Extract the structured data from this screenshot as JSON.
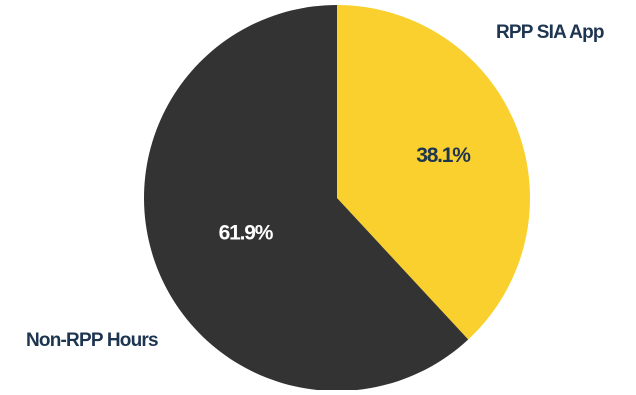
{
  "chart_data": {
    "type": "pie",
    "title": "",
    "slices": [
      {
        "category": "RPP SIA App",
        "value": 38.1,
        "label": "38.1%",
        "color": "#f9d02e",
        "text_color": "#1e3550"
      },
      {
        "category": "Non-RPP Hours",
        "value": 61.9,
        "label": "61.9%",
        "color": "#333333",
        "text_color": "#ffffff"
      }
    ],
    "category_label_color": "#1e3550",
    "legend": "none",
    "start_angle": "12 o'clock",
    "direction": "clockwise"
  }
}
